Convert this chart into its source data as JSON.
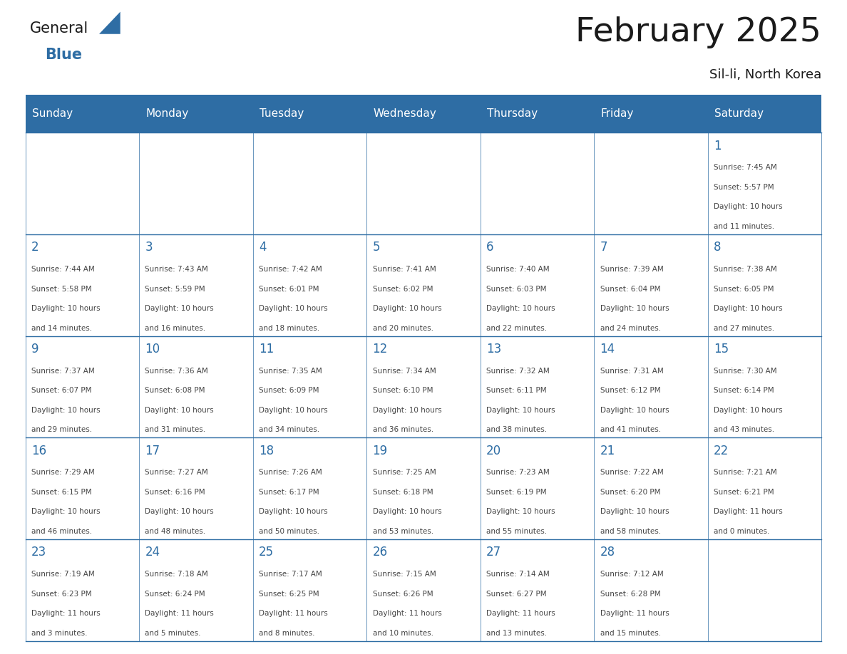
{
  "title": "February 2025",
  "subtitle": "Sil-li, North Korea",
  "header_color": "#2e6da4",
  "header_text_color": "#ffffff",
  "cell_bg_color": "#ffffff",
  "border_color": "#2e6da4",
  "day_num_color": "#2e6da4",
  "text_color": "#444444",
  "days_of_week": [
    "Sunday",
    "Monday",
    "Tuesday",
    "Wednesday",
    "Thursday",
    "Friday",
    "Saturday"
  ],
  "logo_text1": "General",
  "logo_text2": "Blue",
  "logo_color1": "#1a1a1a",
  "logo_color2": "#2e6da4",
  "logo_triangle_color": "#2e6da4",
  "calendar": [
    [
      {
        "day": "",
        "info": ""
      },
      {
        "day": "",
        "info": ""
      },
      {
        "day": "",
        "info": ""
      },
      {
        "day": "",
        "info": ""
      },
      {
        "day": "",
        "info": ""
      },
      {
        "day": "",
        "info": ""
      },
      {
        "day": "1",
        "info": "Sunrise: 7:45 AM\nSunset: 5:57 PM\nDaylight: 10 hours\nand 11 minutes."
      }
    ],
    [
      {
        "day": "2",
        "info": "Sunrise: 7:44 AM\nSunset: 5:58 PM\nDaylight: 10 hours\nand 14 minutes."
      },
      {
        "day": "3",
        "info": "Sunrise: 7:43 AM\nSunset: 5:59 PM\nDaylight: 10 hours\nand 16 minutes."
      },
      {
        "day": "4",
        "info": "Sunrise: 7:42 AM\nSunset: 6:01 PM\nDaylight: 10 hours\nand 18 minutes."
      },
      {
        "day": "5",
        "info": "Sunrise: 7:41 AM\nSunset: 6:02 PM\nDaylight: 10 hours\nand 20 minutes."
      },
      {
        "day": "6",
        "info": "Sunrise: 7:40 AM\nSunset: 6:03 PM\nDaylight: 10 hours\nand 22 minutes."
      },
      {
        "day": "7",
        "info": "Sunrise: 7:39 AM\nSunset: 6:04 PM\nDaylight: 10 hours\nand 24 minutes."
      },
      {
        "day": "8",
        "info": "Sunrise: 7:38 AM\nSunset: 6:05 PM\nDaylight: 10 hours\nand 27 minutes."
      }
    ],
    [
      {
        "day": "9",
        "info": "Sunrise: 7:37 AM\nSunset: 6:07 PM\nDaylight: 10 hours\nand 29 minutes."
      },
      {
        "day": "10",
        "info": "Sunrise: 7:36 AM\nSunset: 6:08 PM\nDaylight: 10 hours\nand 31 minutes."
      },
      {
        "day": "11",
        "info": "Sunrise: 7:35 AM\nSunset: 6:09 PM\nDaylight: 10 hours\nand 34 minutes."
      },
      {
        "day": "12",
        "info": "Sunrise: 7:34 AM\nSunset: 6:10 PM\nDaylight: 10 hours\nand 36 minutes."
      },
      {
        "day": "13",
        "info": "Sunrise: 7:32 AM\nSunset: 6:11 PM\nDaylight: 10 hours\nand 38 minutes."
      },
      {
        "day": "14",
        "info": "Sunrise: 7:31 AM\nSunset: 6:12 PM\nDaylight: 10 hours\nand 41 minutes."
      },
      {
        "day": "15",
        "info": "Sunrise: 7:30 AM\nSunset: 6:14 PM\nDaylight: 10 hours\nand 43 minutes."
      }
    ],
    [
      {
        "day": "16",
        "info": "Sunrise: 7:29 AM\nSunset: 6:15 PM\nDaylight: 10 hours\nand 46 minutes."
      },
      {
        "day": "17",
        "info": "Sunrise: 7:27 AM\nSunset: 6:16 PM\nDaylight: 10 hours\nand 48 minutes."
      },
      {
        "day": "18",
        "info": "Sunrise: 7:26 AM\nSunset: 6:17 PM\nDaylight: 10 hours\nand 50 minutes."
      },
      {
        "day": "19",
        "info": "Sunrise: 7:25 AM\nSunset: 6:18 PM\nDaylight: 10 hours\nand 53 minutes."
      },
      {
        "day": "20",
        "info": "Sunrise: 7:23 AM\nSunset: 6:19 PM\nDaylight: 10 hours\nand 55 minutes."
      },
      {
        "day": "21",
        "info": "Sunrise: 7:22 AM\nSunset: 6:20 PM\nDaylight: 10 hours\nand 58 minutes."
      },
      {
        "day": "22",
        "info": "Sunrise: 7:21 AM\nSunset: 6:21 PM\nDaylight: 11 hours\nand 0 minutes."
      }
    ],
    [
      {
        "day": "23",
        "info": "Sunrise: 7:19 AM\nSunset: 6:23 PM\nDaylight: 11 hours\nand 3 minutes."
      },
      {
        "day": "24",
        "info": "Sunrise: 7:18 AM\nSunset: 6:24 PM\nDaylight: 11 hours\nand 5 minutes."
      },
      {
        "day": "25",
        "info": "Sunrise: 7:17 AM\nSunset: 6:25 PM\nDaylight: 11 hours\nand 8 minutes."
      },
      {
        "day": "26",
        "info": "Sunrise: 7:15 AM\nSunset: 6:26 PM\nDaylight: 11 hours\nand 10 minutes."
      },
      {
        "day": "27",
        "info": "Sunrise: 7:14 AM\nSunset: 6:27 PM\nDaylight: 11 hours\nand 13 minutes."
      },
      {
        "day": "28",
        "info": "Sunrise: 7:12 AM\nSunset: 6:28 PM\nDaylight: 11 hours\nand 15 minutes."
      },
      {
        "day": "",
        "info": ""
      }
    ]
  ]
}
